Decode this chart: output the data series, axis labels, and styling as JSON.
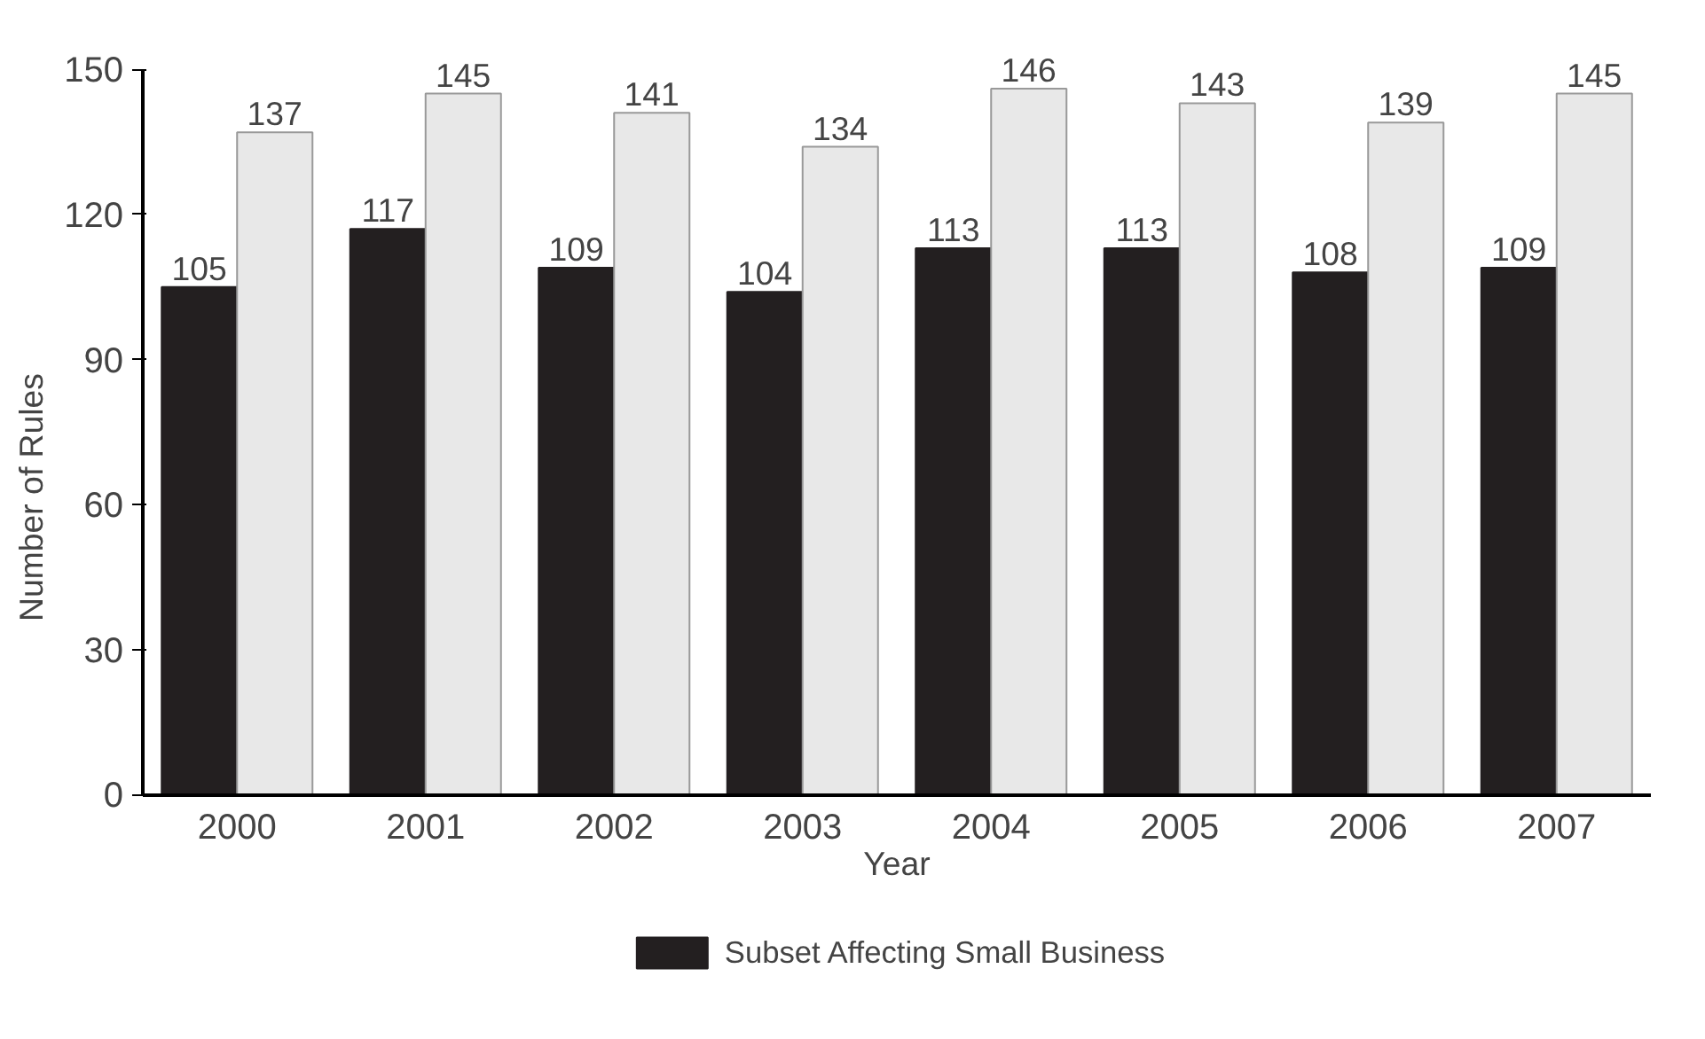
{
  "chart_data": {
    "type": "bar",
    "xlabel": "Year",
    "ylabel": "Number of Rules",
    "categories": [
      "2000",
      "2001",
      "2002",
      "2003",
      "2004",
      "2005",
      "2006",
      "2007"
    ],
    "series": [
      {
        "name": "Subset Affecting Small Business",
        "color": "#231f20",
        "values": [
          105,
          117,
          109,
          104,
          113,
          113,
          108,
          109
        ]
      },
      {
        "color": "#e8e8e8",
        "values": [
          137,
          145,
          141,
          134,
          146,
          143,
          139,
          145
        ]
      }
    ],
    "ylim": [
      0,
      150
    ],
    "yticks": [
      0,
      30,
      60,
      90,
      120,
      150
    ],
    "grid": false,
    "legend": "bottom",
    "data_labels": true
  }
}
